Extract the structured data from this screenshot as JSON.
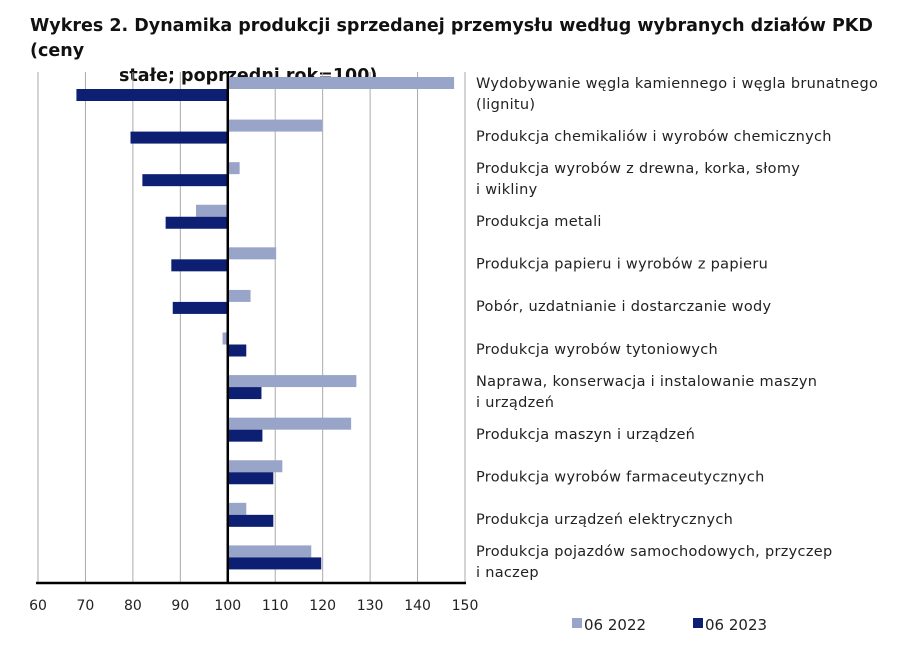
{
  "chart_data": {
    "type": "bar",
    "orientation": "horizontal",
    "title_line1": "Wykres 2. Dynamika produkcji sprzedanej przemysłu według wybranych działów PKD (ceny",
    "title_line2": "stałe; poprzedni rok=100)",
    "categories": [
      [
        "Wydobywanie węgla kamiennego i węgla brunatnego",
        "(lignitu)"
      ],
      [
        "Produkcja chemikaliów i wyrobów chemicznych"
      ],
      [
        "Produkcja wyrobów z drewna, korka, słomy",
        "i wikliny"
      ],
      [
        "Produkcja metali"
      ],
      [
        "Produkcja papieru i wyrobów z papieru"
      ],
      [
        "Pobór, uzdatnianie i dostarczanie wody"
      ],
      [
        "Produkcja wyrobów tytoniowych"
      ],
      [
        "Naprawa, konserwacja i instalowanie maszyn",
        "i urządzeń"
      ],
      [
        "Produkcja maszyn i urządzeń"
      ],
      [
        "Produkcja wyrobów farmaceutycznych"
      ],
      [
        "Produkcja urządzeń elektrycznych"
      ],
      [
        "Produkcja pojazdów samochodowych, przyczep",
        "i naczep"
      ]
    ],
    "series": [
      {
        "name": "06 2022",
        "color": "#98a4c8",
        "values": [
          147.7,
          119.9,
          102.5,
          93.3,
          110.2,
          104.8,
          98.9,
          127.1,
          126.0,
          111.5,
          103.9,
          117.6
        ]
      },
      {
        "name": "06 2023",
        "color": "#0c1f73",
        "values": [
          68.1,
          79.5,
          82.0,
          86.9,
          88.1,
          88.4,
          103.9,
          107.1,
          107.3,
          109.6,
          109.6,
          119.7
        ]
      }
    ],
    "baseline": 100,
    "xlim": [
      60,
      150
    ],
    "xticks": [
      "60",
      "70",
      "80",
      "90",
      "100",
      "110",
      "120",
      "130",
      "140",
      "150"
    ],
    "grid": true,
    "legend": "bottom"
  }
}
